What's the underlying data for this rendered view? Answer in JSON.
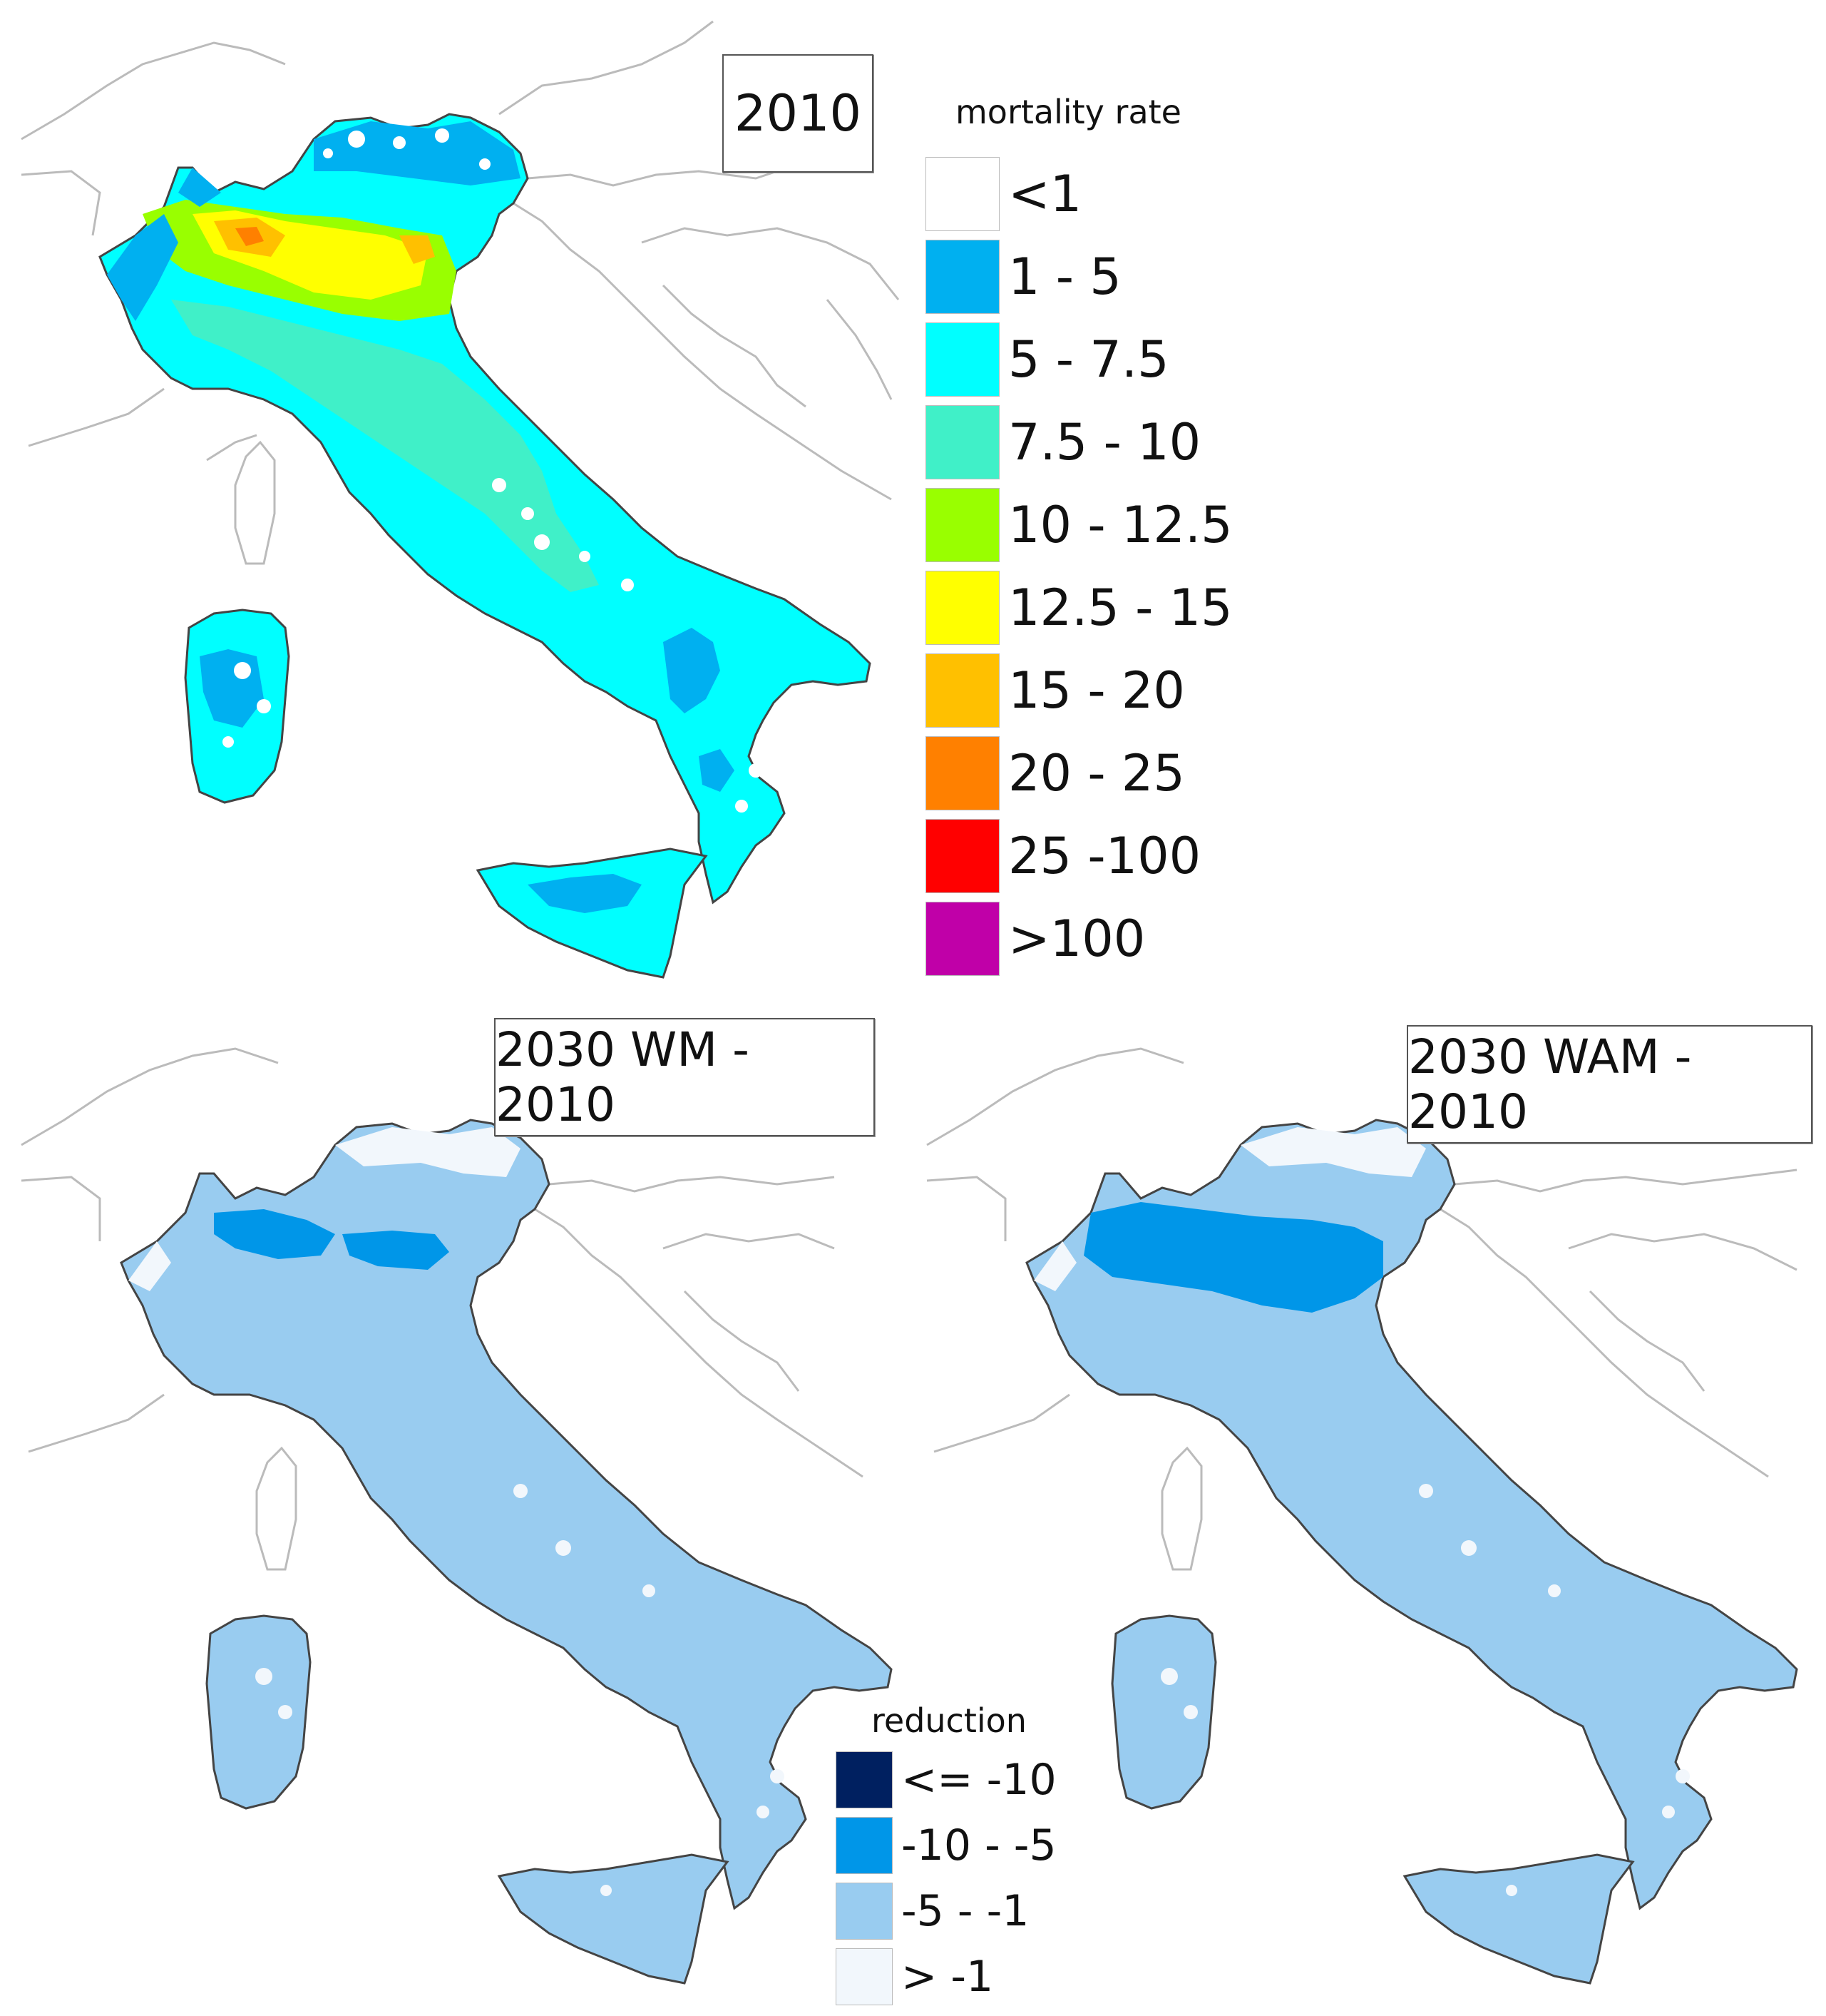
{
  "panels": {
    "top": {
      "title": "2010"
    },
    "bottom_left": {
      "title": "2030 WM - 2010"
    },
    "bottom_right": {
      "title": "2030 WAM - 2010"
    }
  },
  "legend_mortality": {
    "title": "mortality rate",
    "classes": [
      {
        "label": "<1",
        "color": "#ffffff"
      },
      {
        "label": "1 - 5",
        "color": "#00b0f0"
      },
      {
        "label": "5 - 7.5",
        "color": "#00ffff"
      },
      {
        "label": "7.5 - 10",
        "color": "#40f0c8"
      },
      {
        "label": "10 - 12.5",
        "color": "#99ff00"
      },
      {
        "label": "12.5 - 15",
        "color": "#ffff00"
      },
      {
        "label": "15 - 20",
        "color": "#ffc000"
      },
      {
        "label": "20 - 25",
        "color": "#ff8000"
      },
      {
        "label": "25 -100",
        "color": "#ff0000"
      },
      {
        "label": ">100",
        "color": "#c000a8"
      }
    ]
  },
  "legend_reduction": {
    "title": "reduction",
    "classes": [
      {
        "label": "<= -10",
        "color": "#002060"
      },
      {
        "label": "-10 - -5",
        "color": "#0096e8"
      },
      {
        "label": "-5 - -1",
        "color": "#99ccf0"
      },
      {
        "label": "> -1",
        "color": "#f2f7fc"
      }
    ]
  },
  "map_colors": {
    "border": "#bbbbbb",
    "coast": "#444444"
  }
}
